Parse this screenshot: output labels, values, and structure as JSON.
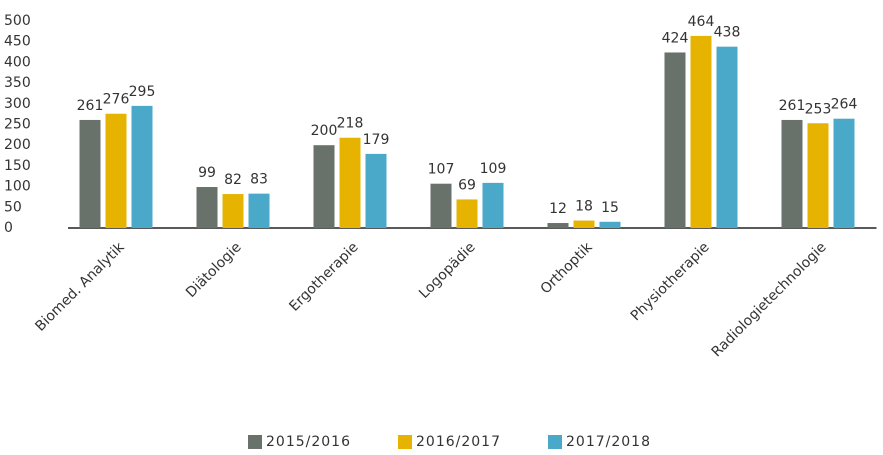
{
  "chart_data": {
    "type": "bar",
    "categories": [
      "Biomed. Analytik",
      "Diätologie",
      "Ergotherapie",
      "Logopädie",
      "Orthoptik",
      "Physiotherapie",
      "Radiologietechnologie"
    ],
    "series": [
      {
        "name": "2015/2016",
        "color": "#68726a",
        "values": [
          261,
          99,
          200,
          107,
          12,
          424,
          261
        ]
      },
      {
        "name": "2016/2017",
        "color": "#e6b400",
        "values": [
          276,
          82,
          218,
          69,
          18,
          464,
          253
        ]
      },
      {
        "name": "2017/2018",
        "color": "#4aa9c9",
        "values": [
          295,
          83,
          179,
          109,
          15,
          438,
          264
        ]
      }
    ],
    "ylim": [
      0,
      500
    ],
    "yticks": [
      0,
      50,
      100,
      150,
      200,
      250,
      300,
      350,
      400,
      450,
      500
    ],
    "grid": false,
    "legend": "bottom"
  }
}
